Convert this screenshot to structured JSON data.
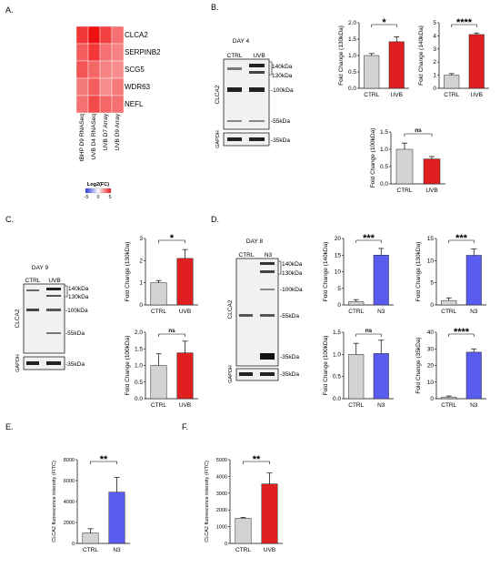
{
  "panel_labels": {
    "A": "A.",
    "B": "B.",
    "C": "C.",
    "D": "D.",
    "E": "E.",
    "F": "F."
  },
  "heatmap": {
    "rows": [
      "CLCA2",
      "SERPINB2",
      "SCG5",
      "WDR63",
      "NEFL"
    ],
    "columns": [
      "tBHP D9 RNASeq",
      "UVB D4 RNASeq",
      "UVB D7 Array",
      "UVB D9 Array"
    ],
    "values": [
      [
        4.2,
        5.0,
        4.0,
        3.0
      ],
      [
        3.4,
        4.2,
        3.0,
        2.6
      ],
      [
        3.6,
        3.2,
        2.6,
        2.4
      ],
      [
        2.8,
        3.4,
        2.4,
        2.8
      ],
      [
        3.0,
        3.8,
        3.2,
        3.0
      ]
    ],
    "legend_title": "Log2(FC)",
    "legend_ticks": [
      "-5",
      "0",
      "5"
    ],
    "colors": {
      "low": "#2233dd",
      "mid": "#ffffff",
      "high": "#ee1111"
    }
  },
  "blots": {
    "B": {
      "day": "DAY 4",
      "lanes": [
        "CTRL",
        "UVB"
      ],
      "antibody": "CLCA2",
      "loading": "GAPDH",
      "markers": [
        "140kDa",
        "130kDa",
        "-100kDa",
        "-55kDa"
      ],
      "gapdh_marker": "-35kDa"
    },
    "C": {
      "day": "DAY 9",
      "lanes": [
        "CTRL",
        "UVB"
      ],
      "antibody": "CLCA2",
      "loading": "GAPDH",
      "markers": [
        "140kDa",
        "130kDa",
        "-100kDa",
        "-55kDa"
      ],
      "gapdh_marker": "-35kDa"
    },
    "D": {
      "day": "DAY 8",
      "lanes": [
        "CTRL",
        "N3"
      ],
      "antibody": "CLCA2",
      "loading": "GAPDH",
      "markers": [
        "140kDa",
        "130kDa",
        "-100kDa",
        "-55kDa",
        "-35kDa"
      ],
      "gapdh_marker": "-35kDa"
    }
  },
  "chart_data": [
    {
      "id": "B1",
      "type": "bar",
      "categories": [
        "CTRL",
        "UVB"
      ],
      "values": [
        1.0,
        1.42
      ],
      "errors": [
        0.06,
        0.15
      ],
      "ylabel": "Fold Change (130kDa)",
      "ylim": [
        0,
        2
      ],
      "yticks": [
        "0.0",
        "0.5",
        "1.0",
        "1.5",
        "2.0"
      ],
      "significance": "*",
      "colors": [
        "#d3d3d3",
        "#e02020"
      ]
    },
    {
      "id": "B2",
      "type": "bar",
      "categories": [
        "CTRL",
        "UVB"
      ],
      "values": [
        1.0,
        4.1
      ],
      "errors": [
        0.12,
        0.12
      ],
      "ylabel": "Fold Change (140kDa)",
      "ylim": [
        0,
        5
      ],
      "yticks": [
        "0",
        "1",
        "2",
        "3",
        "4",
        "5"
      ],
      "significance": "****",
      "colors": [
        "#d3d3d3",
        "#e02020"
      ]
    },
    {
      "id": "B3",
      "type": "bar",
      "categories": [
        "CTRL",
        "UVB"
      ],
      "values": [
        1.0,
        0.72
      ],
      "errors": [
        0.18,
        0.07
      ],
      "ylabel": "Fold Change (100kDa)",
      "ylim": [
        0,
        1.5
      ],
      "yticks": [
        "0.0",
        "0.5",
        "1.0",
        "1.5"
      ],
      "significance": "ns",
      "colors": [
        "#d3d3d3",
        "#e02020"
      ]
    },
    {
      "id": "C1",
      "type": "bar",
      "categories": [
        "CTRL",
        "UVB"
      ],
      "values": [
        1.0,
        2.1
      ],
      "errors": [
        0.1,
        0.4
      ],
      "ylabel": "Fold Change (130kDa)",
      "ylim": [
        0,
        3
      ],
      "yticks": [
        "0",
        "1",
        "2",
        "3"
      ],
      "significance": "*",
      "colors": [
        "#d3d3d3",
        "#e02020"
      ]
    },
    {
      "id": "C2",
      "type": "bar",
      "categories": [
        "CTRL",
        "UVB"
      ],
      "values": [
        1.0,
        1.38
      ],
      "errors": [
        0.35,
        0.35
      ],
      "ylabel": "Fold Change (100kDa)",
      "ylim": [
        0,
        2
      ],
      "yticks": [
        "0.0",
        "0.5",
        "1.0",
        "1.5",
        "2.0"
      ],
      "significance": "ns",
      "colors": [
        "#d3d3d3",
        "#e02020"
      ]
    },
    {
      "id": "D1",
      "type": "bar",
      "categories": [
        "CTRL",
        "N3"
      ],
      "values": [
        1.0,
        15.0
      ],
      "errors": [
        0.6,
        2.0
      ],
      "ylabel": "Fold Change (140kDa)",
      "ylim": [
        0,
        20
      ],
      "yticks": [
        "0",
        "5",
        "10",
        "15",
        "20"
      ],
      "significance": "***",
      "colors": [
        "#d3d3d3",
        "#5a5cf0"
      ]
    },
    {
      "id": "D2",
      "type": "bar",
      "categories": [
        "CTRL",
        "N3"
      ],
      "values": [
        1.0,
        11.2
      ],
      "errors": [
        0.6,
        1.4
      ],
      "ylabel": "Fold Change (130kDa)",
      "ylim": [
        0,
        15
      ],
      "yticks": [
        "0",
        "5",
        "10",
        "15"
      ],
      "significance": "***",
      "colors": [
        "#d3d3d3",
        "#5a5cf0"
      ]
    },
    {
      "id": "D3",
      "type": "bar",
      "categories": [
        "CTRL",
        "N3"
      ],
      "values": [
        1.0,
        1.02
      ],
      "errors": [
        0.25,
        0.3
      ],
      "ylabel": "Fold Change (100kDa)",
      "ylim": [
        0,
        1.5
      ],
      "yticks": [
        "0.0",
        "0.5",
        "1.0",
        "1.5"
      ],
      "significance": "ns",
      "colors": [
        "#d3d3d3",
        "#5a5cf0"
      ]
    },
    {
      "id": "D4",
      "type": "bar",
      "categories": [
        "CTRL",
        "N3"
      ],
      "values": [
        1.0,
        28.0
      ],
      "errors": [
        0.6,
        2.0
      ],
      "ylabel": "Fold Change (35kDa)",
      "ylim": [
        0,
        40
      ],
      "yticks": [
        "0",
        "10",
        "20",
        "30",
        "40"
      ],
      "significance": "****",
      "colors": [
        "#d3d3d3",
        "#5a5cf0"
      ]
    },
    {
      "id": "E",
      "type": "bar",
      "categories": [
        "CTRL",
        "N3"
      ],
      "values": [
        1000,
        4900
      ],
      "errors": [
        400,
        1400
      ],
      "ylabel": "CLCA2 fluorescence intensity (FITC)",
      "ylim": [
        0,
        8000
      ],
      "yticks": [
        "0",
        "2000",
        "4000",
        "6000",
        "8000"
      ],
      "significance": "**",
      "colors": [
        "#d3d3d3",
        "#5a5cf0"
      ]
    },
    {
      "id": "F",
      "type": "bar",
      "categories": [
        "CTRL",
        "UVB"
      ],
      "values": [
        1500,
        3550
      ],
      "errors": [
        50,
        650
      ],
      "ylabel": "CLCA2 fluorescence intensity (FITC)",
      "ylim": [
        0,
        5000
      ],
      "yticks": [
        "0",
        "1000",
        "2000",
        "3000",
        "4000",
        "5000"
      ],
      "significance": "**",
      "colors": [
        "#d3d3d3",
        "#e02020"
      ]
    }
  ]
}
